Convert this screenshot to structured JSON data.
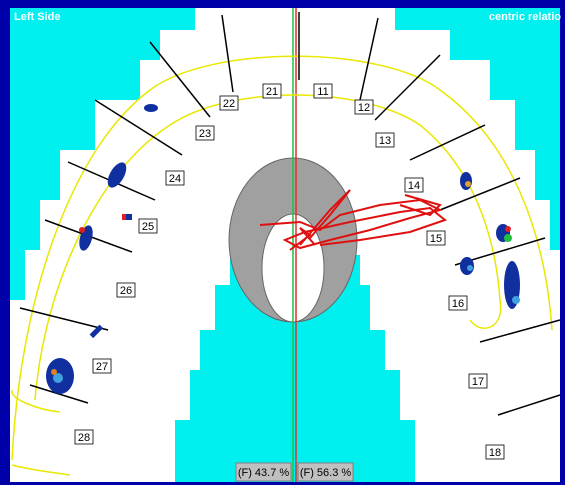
{
  "header": {
    "left": "Left Side",
    "right": "centric relatio"
  },
  "teeth": [
    "11",
    "12",
    "13",
    "14",
    "15",
    "16",
    "17",
    "18",
    "21",
    "22",
    "23",
    "24",
    "25",
    "26",
    "27",
    "28"
  ],
  "force": [
    "(F) 43.7 %",
    "(F) 56.3 %"
  ]
}
